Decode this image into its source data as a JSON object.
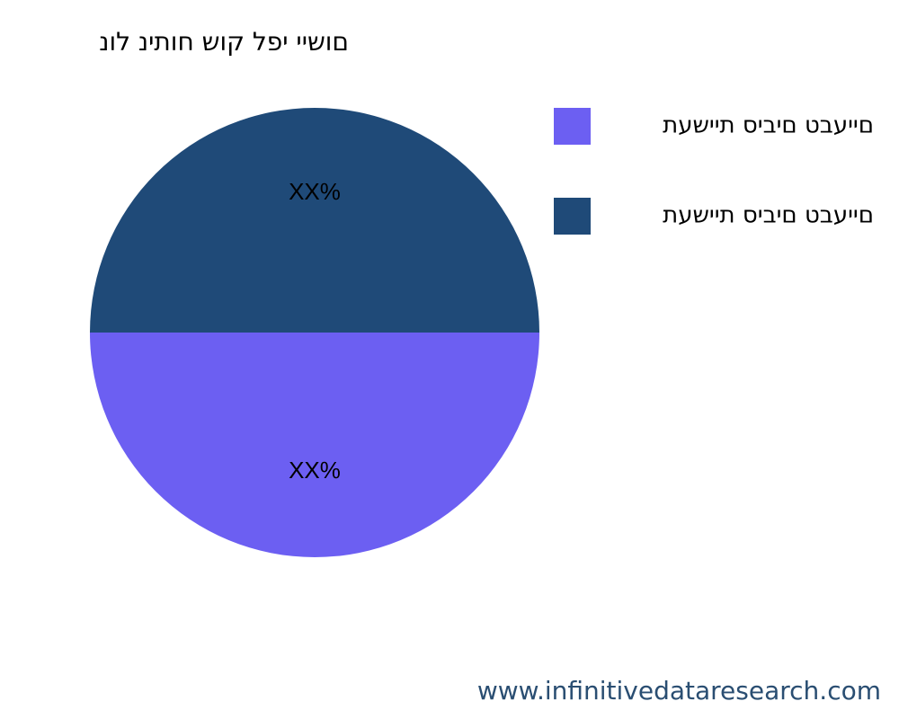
{
  "chart_data": {
    "type": "pie",
    "title": "םושיי יפל קוש חותינ לונ",
    "categories": [
      "םייעבט םיביס תיישעת",
      "םייעבט םיביס תיישעת"
    ],
    "values": [
      50,
      50
    ],
    "value_labels": [
      "XX%",
      "XX%"
    ],
    "colors": [
      "#6c5ff2",
      "#1f4a78"
    ],
    "legend": "top-right",
    "watermark": "www.infinitivedataresearch.com"
  }
}
